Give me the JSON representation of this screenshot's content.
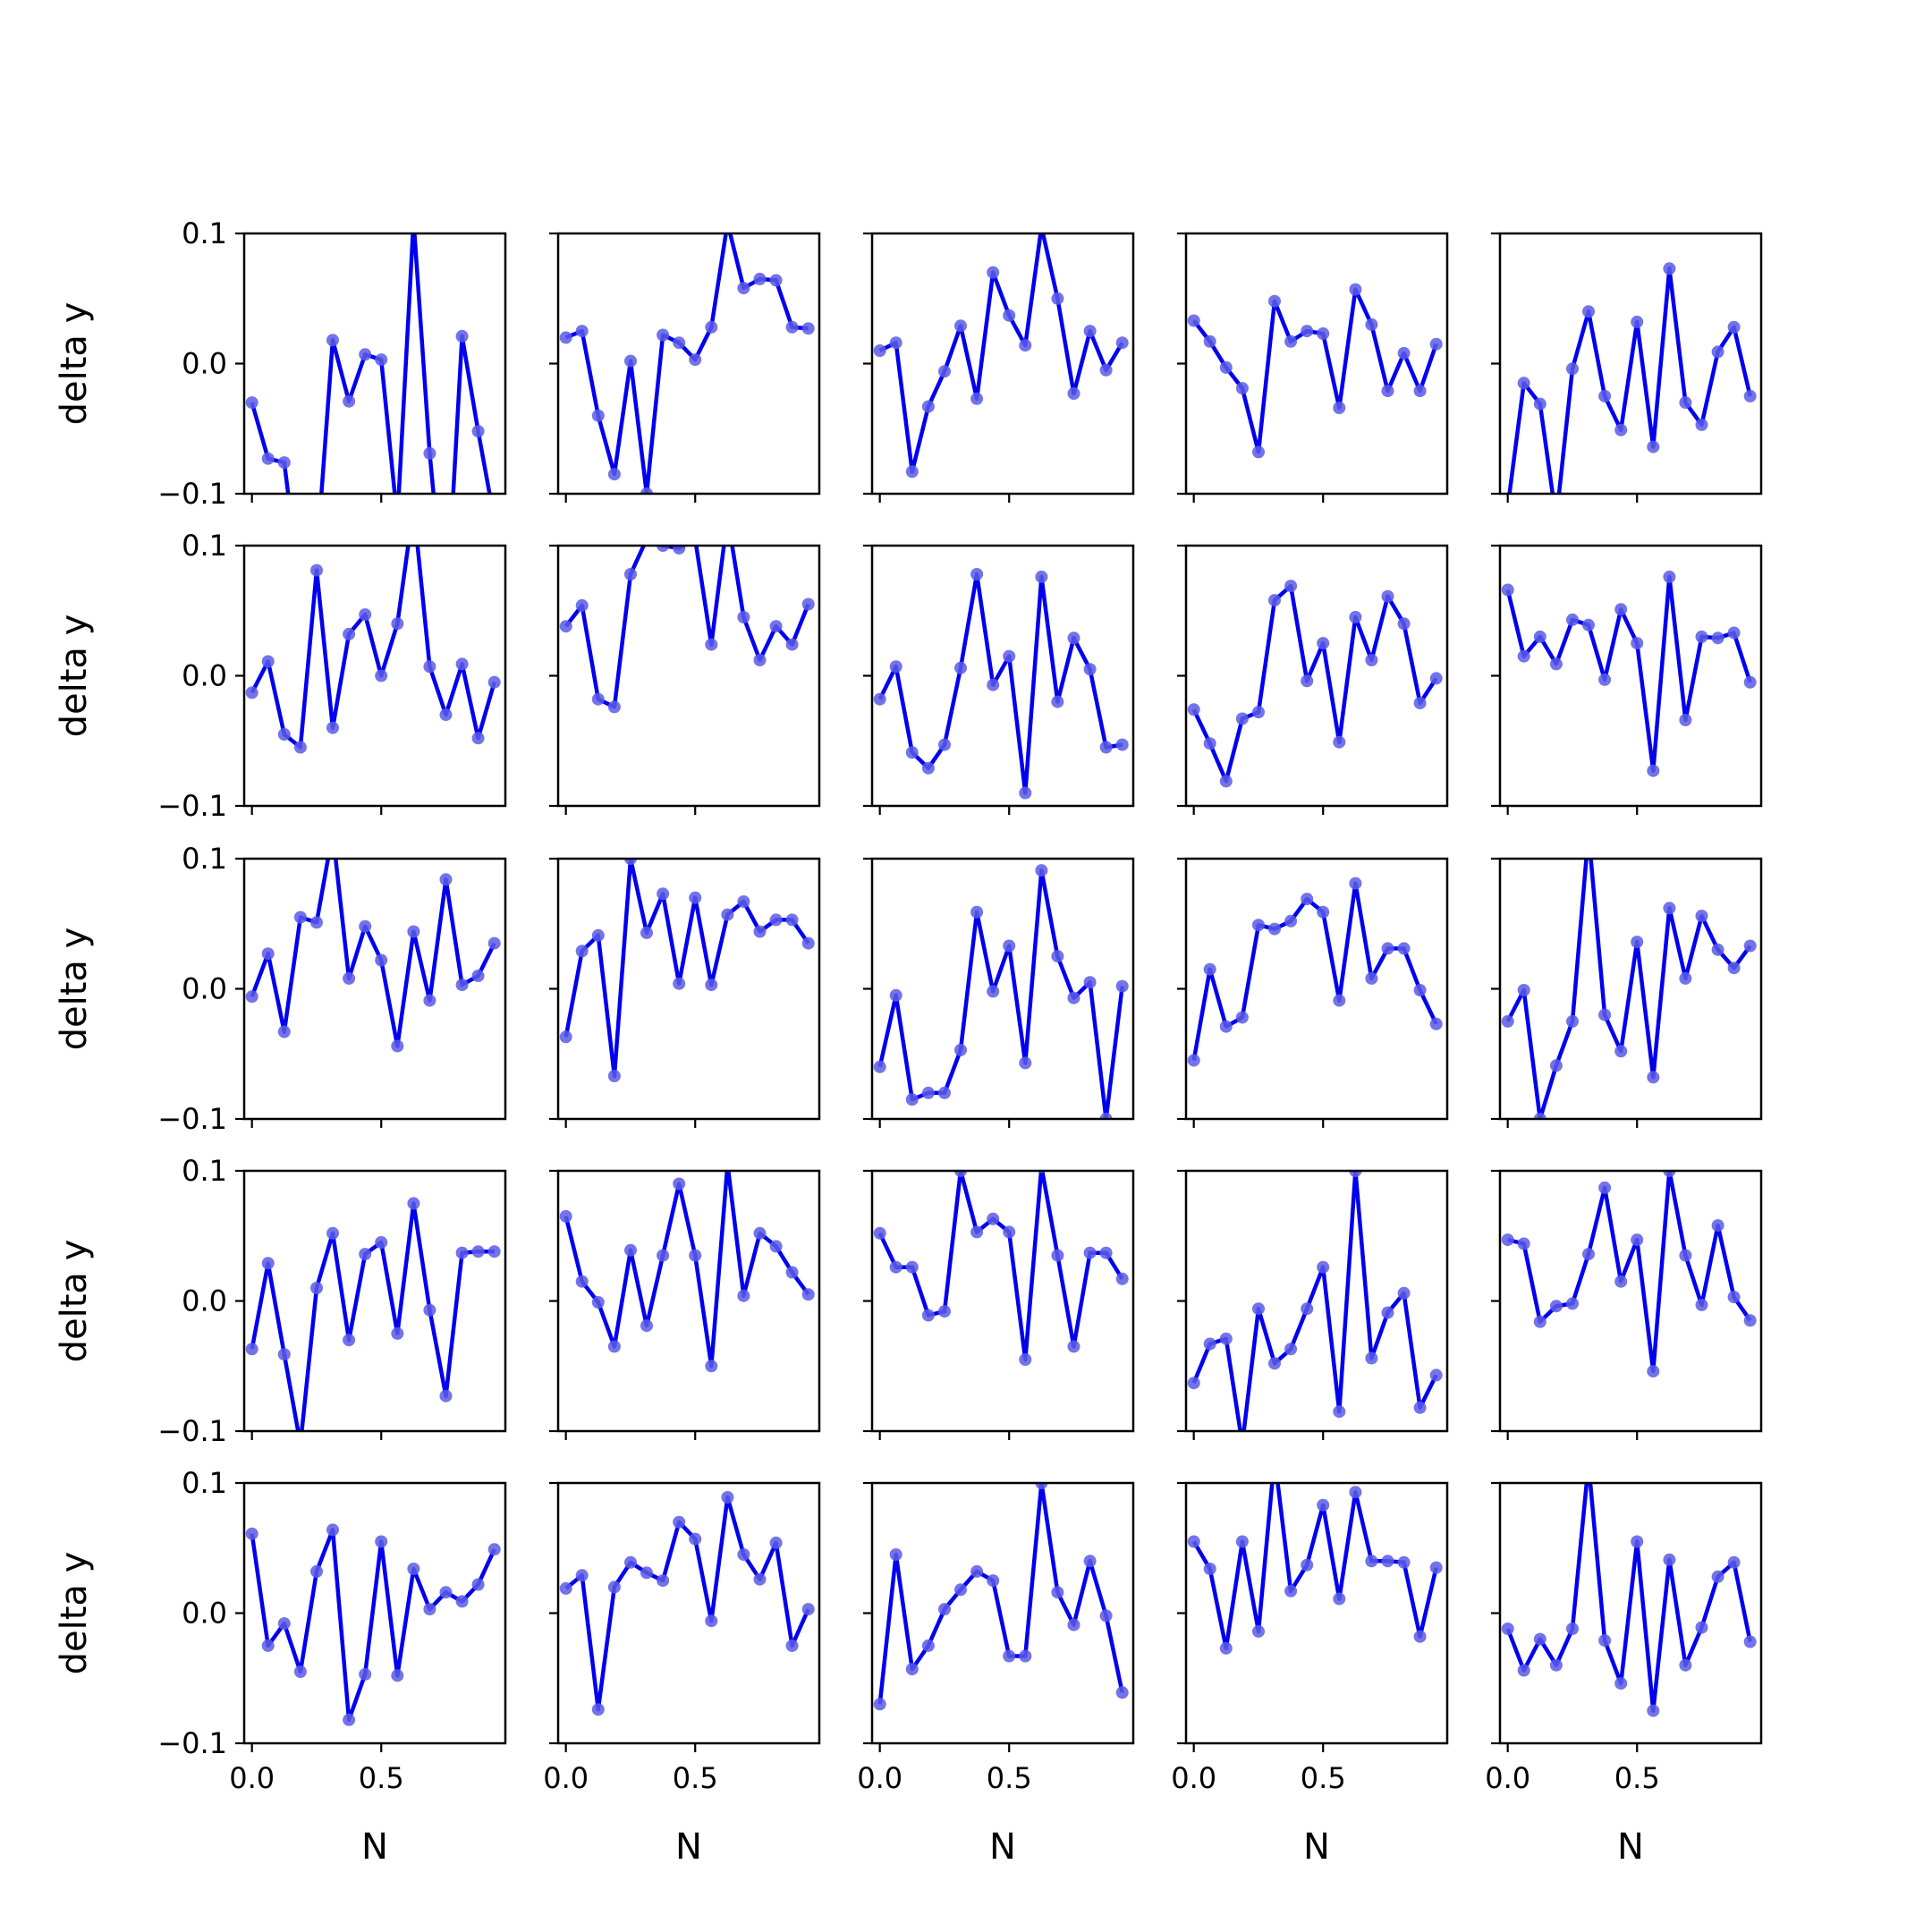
{
  "figure": {
    "ylabel": "delta y",
    "xlabel": "N",
    "ytick_labels": [
      "0.1",
      "0.0",
      "−0.1"
    ],
    "xtick_labels": [
      "0.0",
      "0.5"
    ],
    "line_color": "#0000ee",
    "marker_color": "#5a5ae6"
  },
  "chart_data": {
    "type": "line",
    "layout": "5x5 grid of subplots, shared axes",
    "xlabel": "N",
    "ylabel": "delta y",
    "xlim": [
      -0.03,
      0.98
    ],
    "ylim": [
      -0.1,
      0.1
    ],
    "yticks": [
      -0.1,
      0.0,
      0.1
    ],
    "xticks": [
      0.0,
      0.5
    ],
    "grid": false,
    "x": [
      0.0,
      0.0625,
      0.125,
      0.1875,
      0.25,
      0.3125,
      0.375,
      0.4375,
      0.5,
      0.5625,
      0.625,
      0.6875,
      0.75,
      0.8125,
      0.875,
      0.9375
    ],
    "panels": [
      [
        -0.03,
        -0.073,
        -0.076,
        -0.175,
        -0.15,
        0.018,
        -0.029,
        0.007,
        0.003,
        -0.12,
        0.11,
        -0.069,
        -0.2,
        0.021,
        -0.052,
        -0.12
      ],
      [
        0.02,
        0.025,
        -0.04,
        -0.085,
        0.002,
        -0.1,
        0.022,
        0.016,
        0.003,
        0.028,
        0.108,
        0.058,
        0.065,
        0.064,
        0.028,
        0.027
      ],
      [
        0.01,
        0.016,
        -0.083,
        -0.033,
        -0.006,
        0.029,
        -0.027,
        0.07,
        0.037,
        0.014,
        0.105,
        0.05,
        -0.023,
        0.025,
        -0.005,
        0.016
      ],
      [
        0.033,
        0.017,
        -0.003,
        -0.019,
        -0.068,
        0.048,
        0.017,
        0.025,
        0.023,
        -0.034,
        0.057,
        0.03,
        -0.021,
        0.008,
        -0.021,
        0.015
      ],
      [
        -0.11,
        -0.015,
        -0.031,
        -0.12,
        -0.004,
        0.04,
        -0.025,
        -0.051,
        0.032,
        -0.064,
        0.073,
        -0.03,
        -0.047,
        0.009,
        0.028,
        -0.025
      ],
      [
        -0.013,
        0.011,
        -0.045,
        -0.055,
        0.081,
        -0.04,
        0.032,
        0.047,
        0.0,
        0.04,
        0.13,
        0.007,
        -0.03,
        0.009,
        -0.048,
        -0.005
      ],
      [
        0.038,
        0.054,
        -0.018,
        -0.024,
        0.078,
        0.105,
        0.1,
        0.098,
        0.105,
        0.024,
        0.122,
        0.045,
        0.012,
        0.038,
        0.024,
        0.055
      ],
      [
        -0.018,
        0.007,
        -0.059,
        -0.071,
        -0.053,
        0.006,
        0.078,
        -0.007,
        0.015,
        -0.09,
        0.076,
        -0.02,
        0.029,
        0.005,
        -0.055,
        -0.053
      ],
      [
        -0.026,
        -0.052,
        -0.081,
        -0.033,
        -0.028,
        0.058,
        0.069,
        -0.004,
        0.025,
        -0.051,
        0.045,
        0.012,
        0.061,
        0.04,
        -0.021,
        -0.002
      ],
      [
        0.066,
        0.015,
        0.03,
        0.009,
        0.043,
        0.039,
        -0.003,
        0.051,
        0.025,
        -0.073,
        0.076,
        -0.034,
        0.03,
        0.029,
        0.033,
        -0.005
      ],
      [
        -0.006,
        0.027,
        -0.033,
        0.055,
        0.051,
        0.12,
        0.008,
        0.048,
        0.022,
        -0.044,
        0.044,
        -0.009,
        0.084,
        0.003,
        0.01,
        0.035
      ],
      [
        -0.037,
        0.029,
        0.041,
        -0.067,
        0.1,
        0.043,
        0.073,
        0.004,
        0.07,
        0.003,
        0.057,
        0.067,
        0.044,
        0.053,
        0.053,
        0.035
      ],
      [
        -0.06,
        -0.005,
        -0.085,
        -0.08,
        -0.08,
        -0.047,
        0.059,
        -0.002,
        0.033,
        -0.057,
        0.091,
        0.025,
        -0.007,
        0.005,
        -0.1,
        0.002
      ],
      [
        -0.055,
        0.015,
        -0.029,
        -0.022,
        0.049,
        0.046,
        0.052,
        0.069,
        0.059,
        -0.009,
        0.081,
        0.008,
        0.031,
        0.031,
        -0.001,
        -0.027
      ],
      [
        -0.025,
        -0.001,
        -0.1,
        -0.059,
        -0.025,
        0.12,
        -0.02,
        -0.048,
        0.036,
        -0.068,
        0.062,
        0.008,
        0.056,
        0.03,
        0.016,
        0.033
      ],
      [
        -0.037,
        0.029,
        -0.041,
        -0.11,
        0.01,
        0.052,
        -0.03,
        0.036,
        0.045,
        -0.025,
        0.075,
        -0.007,
        -0.073,
        0.037,
        0.038,
        0.038
      ],
      [
        0.065,
        0.015,
        -0.001,
        -0.035,
        0.039,
        -0.019,
        0.035,
        0.09,
        0.035,
        -0.05,
        0.105,
        0.004,
        0.052,
        0.042,
        0.022,
        0.005
      ],
      [
        0.052,
        0.026,
        0.026,
        -0.011,
        -0.008,
        0.1,
        0.053,
        0.063,
        0.053,
        -0.045,
        0.103,
        0.035,
        -0.035,
        0.037,
        0.037,
        0.017
      ],
      [
        -0.063,
        -0.033,
        -0.029,
        -0.11,
        -0.006,
        -0.048,
        -0.037,
        -0.006,
        0.026,
        -0.085,
        0.1,
        -0.044,
        -0.009,
        0.006,
        -0.082,
        -0.057
      ],
      [
        0.047,
        0.044,
        -0.016,
        -0.004,
        -0.002,
        0.036,
        0.087,
        0.015,
        0.047,
        -0.054,
        0.1,
        0.035,
        -0.003,
        0.058,
        0.003,
        -0.015
      ],
      [
        0.061,
        -0.025,
        -0.008,
        -0.045,
        0.032,
        0.064,
        -0.082,
        -0.047,
        0.055,
        -0.048,
        0.034,
        0.003,
        0.016,
        0.009,
        0.022,
        0.049
      ],
      [
        0.019,
        0.029,
        -0.074,
        0.02,
        0.039,
        0.031,
        0.025,
        0.07,
        0.057,
        -0.006,
        0.089,
        0.045,
        0.026,
        0.054,
        -0.025,
        0.003
      ],
      [
        -0.07,
        0.045,
        -0.043,
        -0.025,
        0.003,
        0.018,
        0.032,
        0.025,
        -0.033,
        -0.033,
        0.1,
        0.016,
        -0.009,
        0.04,
        -0.002,
        -0.061
      ],
      [
        0.055,
        0.034,
        -0.027,
        0.055,
        -0.014,
        0.12,
        0.017,
        0.037,
        0.083,
        0.011,
        0.093,
        0.04,
        0.04,
        0.039,
        -0.018,
        0.035
      ],
      [
        -0.012,
        -0.044,
        -0.02,
        -0.04,
        -0.012,
        0.115,
        -0.021,
        -0.054,
        0.055,
        -0.075,
        0.041,
        -0.04,
        -0.011,
        0.028,
        0.039,
        -0.022
      ]
    ]
  }
}
